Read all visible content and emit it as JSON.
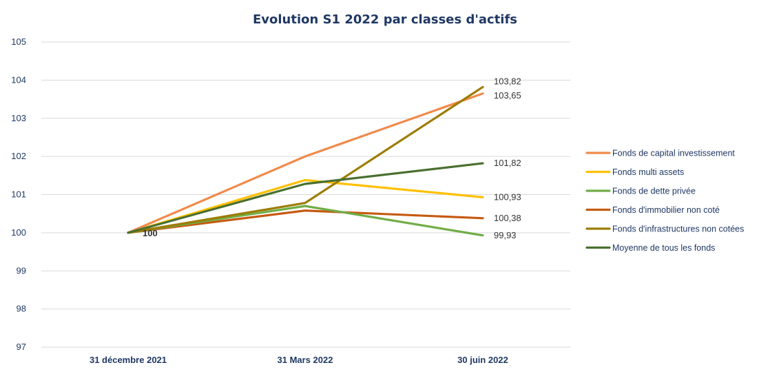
{
  "chart_data": {
    "type": "line",
    "title": "Evolution S1 2022 par classes d'actifs",
    "xlabel": "",
    "ylabel": "",
    "categories": [
      "31 décembre 2021",
      "31 Mars 2022",
      "30 juin 2022"
    ],
    "ylim": [
      97,
      105
    ],
    "yticks": [
      97,
      98,
      99,
      100,
      101,
      102,
      103,
      104,
      105
    ],
    "grid": true,
    "legend_position": "right",
    "start_label": "100",
    "series": [
      {
        "name": "Fonds de capital investissement",
        "values": [
          100,
          102.0,
          103.65
        ],
        "end_label": "103,65",
        "color": "#f08a4b"
      },
      {
        "name": "Fonds multi assets",
        "values": [
          100,
          101.38,
          100.93
        ],
        "end_label": "100,93",
        "color": "#ffc000"
      },
      {
        "name": "Fonds de dette privée",
        "values": [
          100,
          100.7,
          99.93
        ],
        "end_label": "99,93",
        "color": "#70ad47"
      },
      {
        "name": "Fonds d'immobilier non coté",
        "values": [
          100,
          100.58,
          100.38
        ],
        "end_label": "100,38",
        "color": "#c55a11"
      },
      {
        "name": "Fonds d'infrastructures non cotées",
        "values": [
          100,
          100.78,
          103.82
        ],
        "end_label": "103,82",
        "color": "#9c7c00"
      },
      {
        "name": "Moyenne de tous les fonds",
        "values": [
          100,
          101.28,
          101.82
        ],
        "end_label": "101,82",
        "color": "#4a7030"
      }
    ]
  }
}
